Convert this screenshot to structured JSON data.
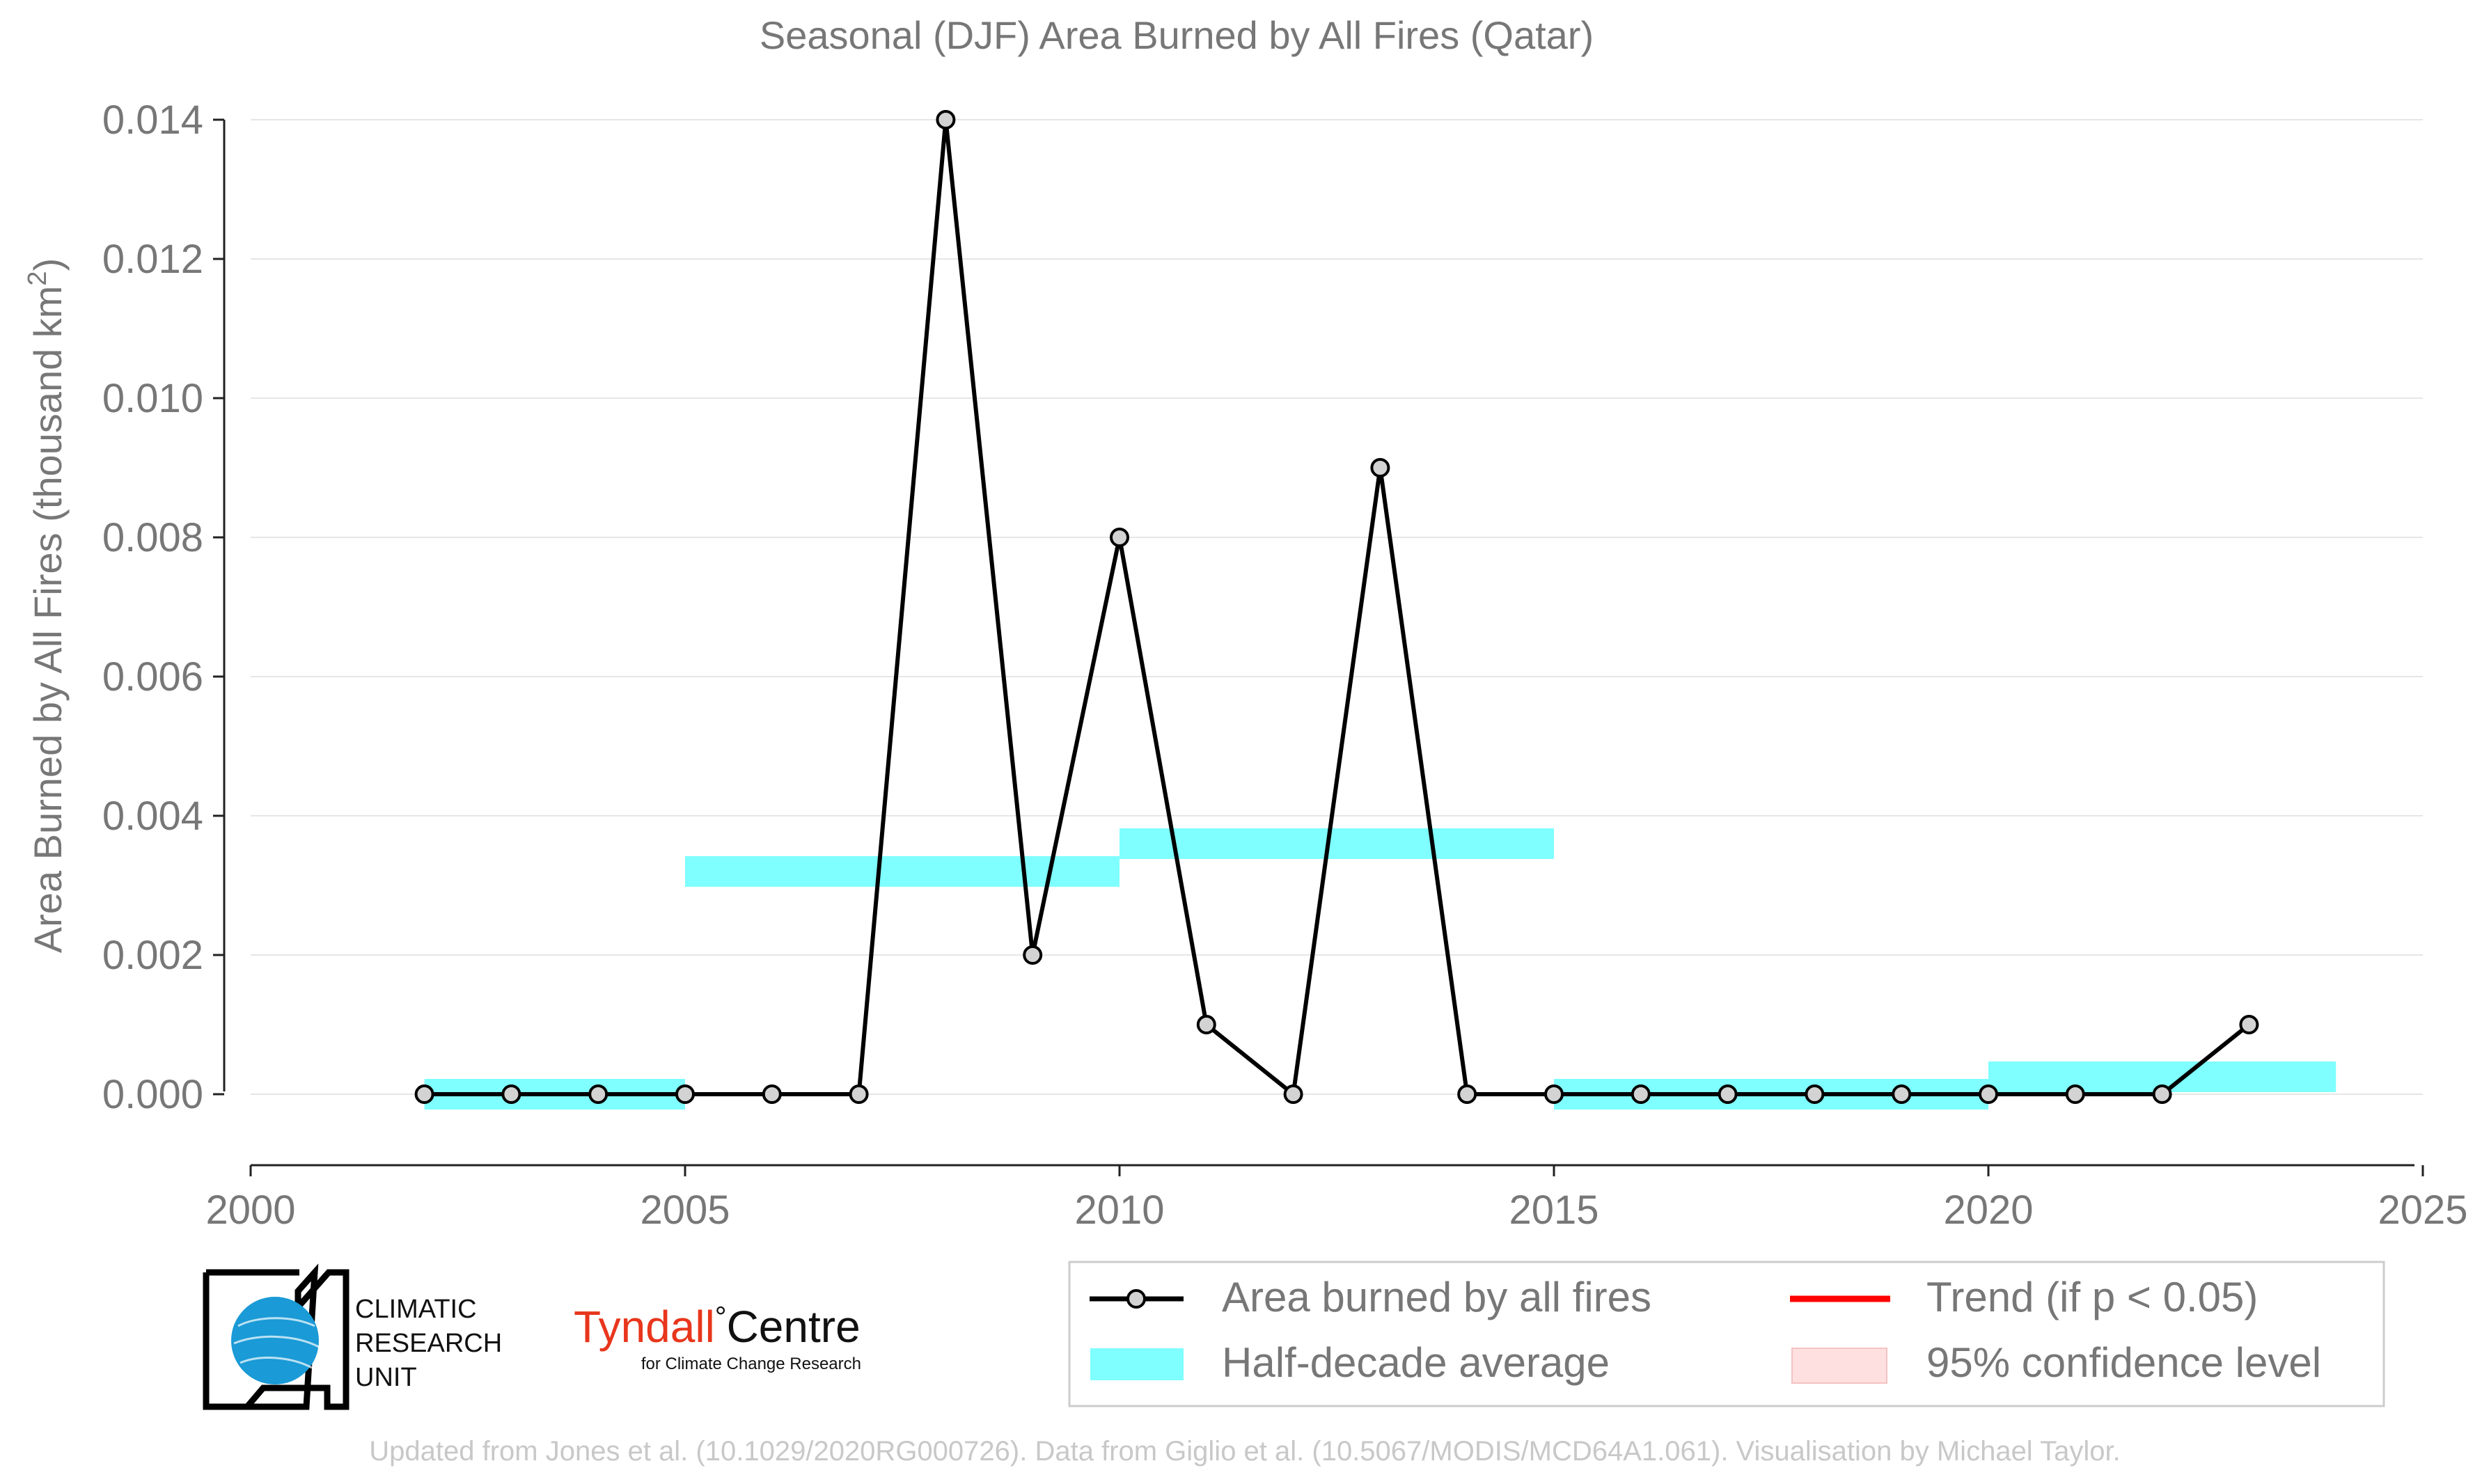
{
  "chart_data": {
    "type": "line",
    "title": "Seasonal (DJF) Area Burned by All Fires (Qatar)",
    "xlabel": "",
    "ylabel": "Area Burned by All Fires (thousand km",
    "ylabel_sup": "2",
    "ylabel_end": ")",
    "xlim": [
      2000,
      2025
    ],
    "ylim": [
      -0.001,
      0.014
    ],
    "x_ticks": [
      2000,
      2005,
      2010,
      2015,
      2020,
      2025
    ],
    "y_ticks": [
      0.0,
      0.002,
      0.004,
      0.006,
      0.008,
      0.01,
      0.012,
      0.014
    ],
    "y_tick_labels": [
      "0.000",
      "0.002",
      "0.004",
      "0.006",
      "0.008",
      "0.010",
      "0.012",
      "0.014"
    ],
    "grid": "horizontal",
    "series": [
      {
        "name": "Area burned by all fires",
        "color": "#000000",
        "x": [
          2002,
          2003,
          2004,
          2005,
          2006,
          2007,
          2008,
          2009,
          2010,
          2011,
          2012,
          2013,
          2014,
          2015,
          2016,
          2017,
          2018,
          2019,
          2020,
          2021,
          2022,
          2023
        ],
        "y": [
          0,
          0,
          0,
          0,
          0,
          0,
          0.014,
          0.002,
          0.008,
          0.001,
          0,
          0.009,
          0,
          0,
          0,
          0,
          0,
          0,
          0,
          0,
          0,
          0.001
        ]
      }
    ],
    "half_decade_average": {
      "name": "Half-decade average",
      "color": "#7fffff",
      "segments": [
        {
          "x0": 2002,
          "x1": 2005,
          "y": 0.0
        },
        {
          "x0": 2005,
          "x1": 2010,
          "y": 0.0032
        },
        {
          "x0": 2010,
          "x1": 2015,
          "y": 0.0036
        },
        {
          "x0": 2015,
          "x1": 2020,
          "y": 0.0
        },
        {
          "x0": 2020,
          "x1": 2024,
          "y": 0.00025
        }
      ]
    },
    "legend": {
      "placement": "bottom-right",
      "items": [
        {
          "label": "Area burned by all fires",
          "kind": "line-marker",
          "color": "#000000"
        },
        {
          "label": "Trend (if p < 0.05)",
          "kind": "line",
          "color": "#ff0000"
        },
        {
          "label": "Half-decade average",
          "kind": "band",
          "color": "#7fffff"
        },
        {
          "label": "95% confidence level",
          "kind": "box",
          "color": "#ffe0e0"
        }
      ]
    }
  },
  "logos": {
    "cru": {
      "line1": "CLIMATIC",
      "line2": "RESEARCH",
      "line3": "UNIT"
    },
    "tyndall": {
      "name_red": "Tyndall",
      "degree": "°",
      "name_black": "Centre",
      "tagline": "for Climate Change Research"
    }
  },
  "footer": "Updated from Jones et al. (10.1029/2020RG000726). Data from Giglio et al. (10.5067/MODIS/MCD64A1.061). Visualisation by Michael Taylor."
}
